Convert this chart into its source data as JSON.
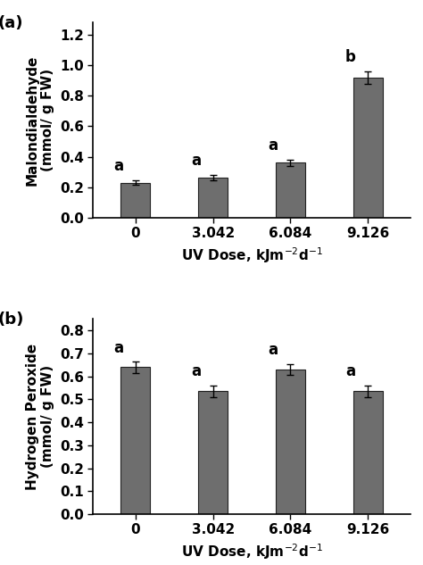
{
  "panel_a": {
    "categories": [
      "0",
      "3.042",
      "6.084",
      "9.126"
    ],
    "values": [
      0.23,
      0.265,
      0.36,
      0.92
    ],
    "errors": [
      0.015,
      0.018,
      0.02,
      0.04
    ],
    "letters": [
      "a",
      "a",
      "a",
      "b"
    ],
    "ylabel_line1": "Malondialdehyde",
    "ylabel_line2": "(mmol/ g FW)",
    "ylim": [
      0,
      1.28
    ],
    "yticks": [
      0,
      0.2,
      0.4,
      0.6,
      0.8,
      1.0,
      1.2
    ],
    "panel_label": "(a)"
  },
  "panel_b": {
    "categories": [
      "0",
      "3.042",
      "6.084",
      "9.126"
    ],
    "values": [
      0.64,
      0.535,
      0.63,
      0.535
    ],
    "errors": [
      0.025,
      0.025,
      0.025,
      0.025
    ],
    "letters": [
      "a",
      "a",
      "a",
      "a"
    ],
    "ylabel_line1": "Hydrogen Peroxide",
    "ylabel_line2": "(mmol/ g FW)",
    "ylim": [
      0,
      0.85
    ],
    "yticks": [
      0,
      0.1,
      0.2,
      0.3,
      0.4,
      0.5,
      0.6,
      0.7,
      0.8
    ],
    "panel_label": "(b)"
  },
  "bar_color": "#6e6e6e",
  "bar_width": 0.38,
  "bar_edge_color": "#222222",
  "background_color": "#ffffff",
  "tick_fontsize": 11,
  "label_fontsize": 11,
  "panel_label_fontsize": 13,
  "letter_fontsize": 12
}
